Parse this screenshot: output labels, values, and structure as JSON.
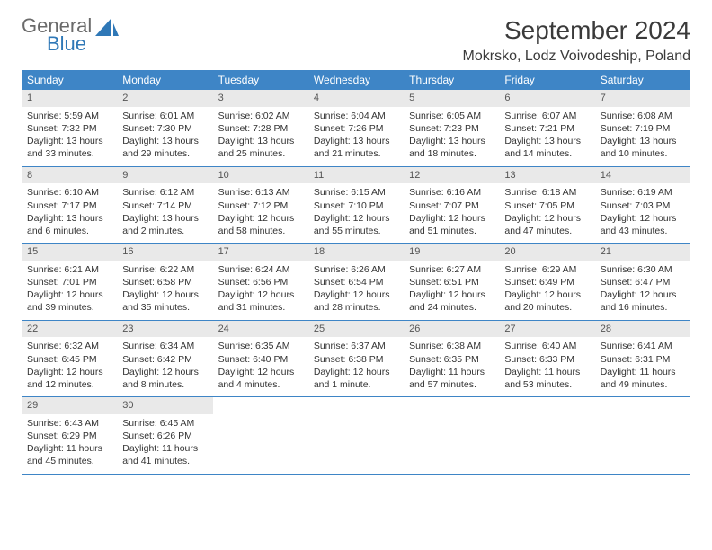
{
  "brand": {
    "general": "General",
    "blue": "Blue"
  },
  "title": "September 2024",
  "location": "Mokrsko, Lodz Voivodeship, Poland",
  "colors": {
    "header_bg": "#3e85c6",
    "header_text": "#ffffff",
    "daynum_bg": "#e9e9e9",
    "border": "#3e85c6",
    "logo_gray": "#6a6a6a",
    "logo_blue": "#2f78b7"
  },
  "day_headers": [
    "Sunday",
    "Monday",
    "Tuesday",
    "Wednesday",
    "Thursday",
    "Friday",
    "Saturday"
  ],
  "weeks": [
    [
      {
        "num": "1",
        "sunrise": "Sunrise: 5:59 AM",
        "sunset": "Sunset: 7:32 PM",
        "dl1": "Daylight: 13 hours",
        "dl2": "and 33 minutes."
      },
      {
        "num": "2",
        "sunrise": "Sunrise: 6:01 AM",
        "sunset": "Sunset: 7:30 PM",
        "dl1": "Daylight: 13 hours",
        "dl2": "and 29 minutes."
      },
      {
        "num": "3",
        "sunrise": "Sunrise: 6:02 AM",
        "sunset": "Sunset: 7:28 PM",
        "dl1": "Daylight: 13 hours",
        "dl2": "and 25 minutes."
      },
      {
        "num": "4",
        "sunrise": "Sunrise: 6:04 AM",
        "sunset": "Sunset: 7:26 PM",
        "dl1": "Daylight: 13 hours",
        "dl2": "and 21 minutes."
      },
      {
        "num": "5",
        "sunrise": "Sunrise: 6:05 AM",
        "sunset": "Sunset: 7:23 PM",
        "dl1": "Daylight: 13 hours",
        "dl2": "and 18 minutes."
      },
      {
        "num": "6",
        "sunrise": "Sunrise: 6:07 AM",
        "sunset": "Sunset: 7:21 PM",
        "dl1": "Daylight: 13 hours",
        "dl2": "and 14 minutes."
      },
      {
        "num": "7",
        "sunrise": "Sunrise: 6:08 AM",
        "sunset": "Sunset: 7:19 PM",
        "dl1": "Daylight: 13 hours",
        "dl2": "and 10 minutes."
      }
    ],
    [
      {
        "num": "8",
        "sunrise": "Sunrise: 6:10 AM",
        "sunset": "Sunset: 7:17 PM",
        "dl1": "Daylight: 13 hours",
        "dl2": "and 6 minutes."
      },
      {
        "num": "9",
        "sunrise": "Sunrise: 6:12 AM",
        "sunset": "Sunset: 7:14 PM",
        "dl1": "Daylight: 13 hours",
        "dl2": "and 2 minutes."
      },
      {
        "num": "10",
        "sunrise": "Sunrise: 6:13 AM",
        "sunset": "Sunset: 7:12 PM",
        "dl1": "Daylight: 12 hours",
        "dl2": "and 58 minutes."
      },
      {
        "num": "11",
        "sunrise": "Sunrise: 6:15 AM",
        "sunset": "Sunset: 7:10 PM",
        "dl1": "Daylight: 12 hours",
        "dl2": "and 55 minutes."
      },
      {
        "num": "12",
        "sunrise": "Sunrise: 6:16 AM",
        "sunset": "Sunset: 7:07 PM",
        "dl1": "Daylight: 12 hours",
        "dl2": "and 51 minutes."
      },
      {
        "num": "13",
        "sunrise": "Sunrise: 6:18 AM",
        "sunset": "Sunset: 7:05 PM",
        "dl1": "Daylight: 12 hours",
        "dl2": "and 47 minutes."
      },
      {
        "num": "14",
        "sunrise": "Sunrise: 6:19 AM",
        "sunset": "Sunset: 7:03 PM",
        "dl1": "Daylight: 12 hours",
        "dl2": "and 43 minutes."
      }
    ],
    [
      {
        "num": "15",
        "sunrise": "Sunrise: 6:21 AM",
        "sunset": "Sunset: 7:01 PM",
        "dl1": "Daylight: 12 hours",
        "dl2": "and 39 minutes."
      },
      {
        "num": "16",
        "sunrise": "Sunrise: 6:22 AM",
        "sunset": "Sunset: 6:58 PM",
        "dl1": "Daylight: 12 hours",
        "dl2": "and 35 minutes."
      },
      {
        "num": "17",
        "sunrise": "Sunrise: 6:24 AM",
        "sunset": "Sunset: 6:56 PM",
        "dl1": "Daylight: 12 hours",
        "dl2": "and 31 minutes."
      },
      {
        "num": "18",
        "sunrise": "Sunrise: 6:26 AM",
        "sunset": "Sunset: 6:54 PM",
        "dl1": "Daylight: 12 hours",
        "dl2": "and 28 minutes."
      },
      {
        "num": "19",
        "sunrise": "Sunrise: 6:27 AM",
        "sunset": "Sunset: 6:51 PM",
        "dl1": "Daylight: 12 hours",
        "dl2": "and 24 minutes."
      },
      {
        "num": "20",
        "sunrise": "Sunrise: 6:29 AM",
        "sunset": "Sunset: 6:49 PM",
        "dl1": "Daylight: 12 hours",
        "dl2": "and 20 minutes."
      },
      {
        "num": "21",
        "sunrise": "Sunrise: 6:30 AM",
        "sunset": "Sunset: 6:47 PM",
        "dl1": "Daylight: 12 hours",
        "dl2": "and 16 minutes."
      }
    ],
    [
      {
        "num": "22",
        "sunrise": "Sunrise: 6:32 AM",
        "sunset": "Sunset: 6:45 PM",
        "dl1": "Daylight: 12 hours",
        "dl2": "and 12 minutes."
      },
      {
        "num": "23",
        "sunrise": "Sunrise: 6:34 AM",
        "sunset": "Sunset: 6:42 PM",
        "dl1": "Daylight: 12 hours",
        "dl2": "and 8 minutes."
      },
      {
        "num": "24",
        "sunrise": "Sunrise: 6:35 AM",
        "sunset": "Sunset: 6:40 PM",
        "dl1": "Daylight: 12 hours",
        "dl2": "and 4 minutes."
      },
      {
        "num": "25",
        "sunrise": "Sunrise: 6:37 AM",
        "sunset": "Sunset: 6:38 PM",
        "dl1": "Daylight: 12 hours",
        "dl2": "and 1 minute."
      },
      {
        "num": "26",
        "sunrise": "Sunrise: 6:38 AM",
        "sunset": "Sunset: 6:35 PM",
        "dl1": "Daylight: 11 hours",
        "dl2": "and 57 minutes."
      },
      {
        "num": "27",
        "sunrise": "Sunrise: 6:40 AM",
        "sunset": "Sunset: 6:33 PM",
        "dl1": "Daylight: 11 hours",
        "dl2": "and 53 minutes."
      },
      {
        "num": "28",
        "sunrise": "Sunrise: 6:41 AM",
        "sunset": "Sunset: 6:31 PM",
        "dl1": "Daylight: 11 hours",
        "dl2": "and 49 minutes."
      }
    ],
    [
      {
        "num": "29",
        "sunrise": "Sunrise: 6:43 AM",
        "sunset": "Sunset: 6:29 PM",
        "dl1": "Daylight: 11 hours",
        "dl2": "and 45 minutes."
      },
      {
        "num": "30",
        "sunrise": "Sunrise: 6:45 AM",
        "sunset": "Sunset: 6:26 PM",
        "dl1": "Daylight: 11 hours",
        "dl2": "and 41 minutes."
      },
      {
        "empty": true
      },
      {
        "empty": true
      },
      {
        "empty": true
      },
      {
        "empty": true
      },
      {
        "empty": true
      }
    ]
  ]
}
